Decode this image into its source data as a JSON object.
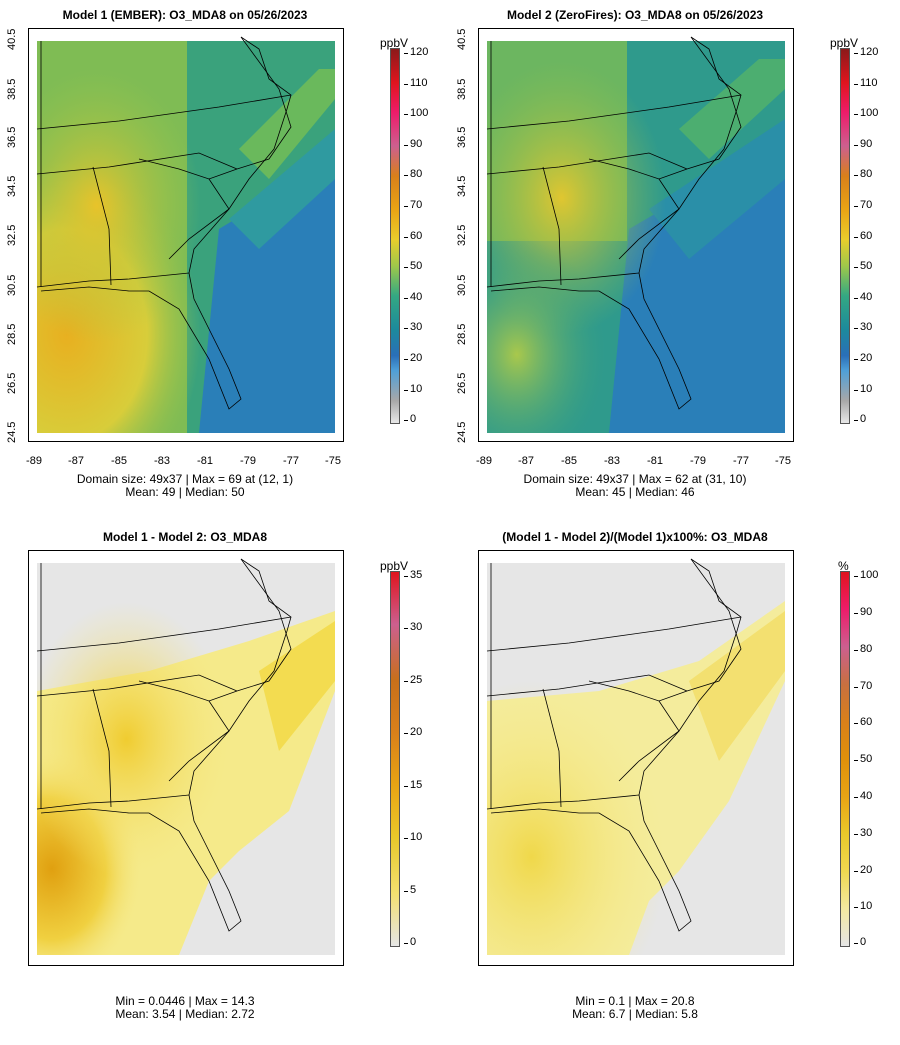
{
  "panels": [
    {
      "title": "Model 1 (EMBER): O3_MDA8 on 05/26/2023",
      "stats_line1": "Domain size: 49x37 | Max = 69 at (12, 1)",
      "stats_line2": "Mean: 49 |  Median: 50",
      "unit": "ppbV",
      "scale_ticks": [
        "120",
        "110",
        "100",
        "90",
        "80",
        "70",
        "60",
        "50",
        "40",
        "30",
        "20",
        "10",
        "0"
      ],
      "scale_colors": [
        "#8b1a1a",
        "#e0141e",
        "#ee1c6a",
        "#cc5f8f",
        "#d9801a",
        "#e8a414",
        "#e8cd2c",
        "#9fc84a",
        "#34a882",
        "#1c8a9c",
        "#2a6fb8",
        "#4fa0d8",
        "#a8a8a8",
        "#e8e8e8"
      ],
      "lat_labels": [
        "40.5",
        "38.5",
        "36.5",
        "34.5",
        "32.5",
        "30.5",
        "28.5",
        "26.5",
        "24.5"
      ],
      "lon_labels": [
        "-89",
        "-87",
        "-85",
        "-83",
        "-81",
        "-79",
        "-77",
        "-75"
      ]
    },
    {
      "title": "Model 2 (ZeroFires): O3_MDA8 on 05/26/2023",
      "stats_line1": "Domain size: 49x37 | Max = 62 at (31, 10)",
      "stats_line2": "Mean: 45 |  Median: 46",
      "unit": "ppbV",
      "scale_ticks": [
        "120",
        "110",
        "100",
        "90",
        "80",
        "70",
        "60",
        "50",
        "40",
        "30",
        "20",
        "10",
        "0"
      ],
      "lat_labels": [
        "40.5",
        "38.5",
        "36.5",
        "34.5",
        "32.5",
        "30.5",
        "28.5",
        "26.5",
        "24.5"
      ],
      "lon_labels": [
        "-89",
        "-87",
        "-85",
        "-83",
        "-81",
        "-79",
        "-77",
        "-75"
      ]
    },
    {
      "title": "Model 1 - Model 2: O3_MDA8",
      "stats_line1": "Min = 0.0446 | Max = 14.3",
      "stats_line2": "Mean: 3.54 |  Median: 2.72",
      "unit": "ppbV",
      "scale_ticks": [
        "35",
        "30",
        "25",
        "20",
        "15",
        "10",
        "5",
        "0"
      ]
    },
    {
      "title": "(Model 1 - Model 2)/(Model 1)x100%: O3_MDA8",
      "stats_line1": "Min = 0.1 | Max = 20.8",
      "stats_line2": "Mean: 6.7 |  Median: 5.8",
      "unit": "%",
      "scale_ticks": [
        "100",
        "90",
        "80",
        "70",
        "60",
        "50",
        "40",
        "30",
        "20",
        "10",
        "0"
      ]
    }
  ],
  "colors": {
    "ozone_high": "#e8cd2c",
    "ozone_mid": "#34a882",
    "ozone_low": "#2a7fb8",
    "diff_high": "#e0a010",
    "diff_low": "#e6e6e6"
  }
}
